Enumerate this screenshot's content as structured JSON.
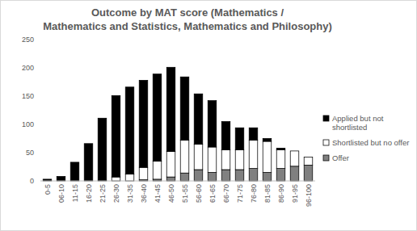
{
  "chart_data": {
    "type": "bar",
    "stacked": true,
    "title": "Outcome by MAT score (Mathematics /\nMathematics and Statistics, Mathematics and Philosophy)",
    "categories": [
      "0-5",
      "06-10",
      "11-15",
      "16-20",
      "21-25",
      "26-30",
      "31-35",
      "36-40",
      "41-45",
      "46-50",
      "51-55",
      "56-60",
      "61-65",
      "66-70",
      "71-75",
      "76-80",
      "81-85",
      "86-90",
      "91-95",
      "96-100"
    ],
    "series": [
      {
        "name": "Applied but not shortlisted",
        "color": "#000000",
        "values": [
          3,
          8,
          33,
          66,
          110,
          144,
          154,
          154,
          154,
          149,
          112,
          89,
          82,
          50,
          39,
          22,
          5,
          3,
          0,
          0
        ]
      },
      {
        "name": "Shortlisted but no offer",
        "color": "#ffffff",
        "values": [
          0,
          0,
          0,
          0,
          1,
          7,
          12,
          22,
          32,
          45,
          58,
          45,
          45,
          35,
          35,
          50,
          55,
          33,
          27,
          14
        ]
      },
      {
        "name": "Offer",
        "color": "#808080",
        "values": [
          0,
          0,
          0,
          0,
          0,
          0,
          0,
          2,
          3,
          7,
          14,
          20,
          15,
          20,
          20,
          22,
          15,
          22,
          26,
          28
        ]
      }
    ],
    "ylim": [
      0,
      250
    ],
    "yticks": [
      0,
      50,
      100,
      150,
      200,
      250
    ],
    "grid": false,
    "legend": "right"
  }
}
